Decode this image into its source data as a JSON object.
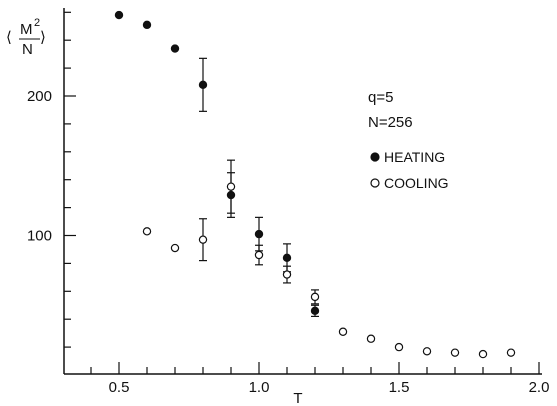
{
  "chart_data": {
    "type": "scatter",
    "title": "",
    "xlabel": "T",
    "ylabel_top": "M",
    "ylabel_sup": "2",
    "ylabel_bottom": "N",
    "xlim": [
      0.35,
      2.0
    ],
    "ylim": [
      0,
      260
    ],
    "x_ticks": [
      {
        "value": 0.5,
        "label": "0.5"
      },
      {
        "value": 1.0,
        "label": "1.0"
      },
      {
        "value": 1.5,
        "label": "1.5"
      },
      {
        "value": 2.0,
        "label": "2.0"
      }
    ],
    "y_ticks": [
      {
        "value": 100,
        "label": "100"
      },
      {
        "value": 200,
        "label": "200"
      }
    ],
    "annotations": [
      "q=5",
      "N=256"
    ],
    "series": [
      {
        "name": "HEATING",
        "marker": "filled-circle",
        "points": [
          {
            "x": 0.5,
            "y": 258
          },
          {
            "x": 0.6,
            "y": 251
          },
          {
            "x": 0.7,
            "y": 234
          },
          {
            "x": 0.8,
            "y": 208,
            "err": 19
          },
          {
            "x": 0.9,
            "y": 129,
            "err": 16
          },
          {
            "x": 1.0,
            "y": 101,
            "err": 12
          },
          {
            "x": 1.1,
            "y": 84,
            "err": 10
          },
          {
            "x": 1.2,
            "y": 46,
            "err": 4
          }
        ]
      },
      {
        "name": "COOLING",
        "marker": "open-circle",
        "points": [
          {
            "x": 0.6,
            "y": 103
          },
          {
            "x": 0.7,
            "y": 91
          },
          {
            "x": 0.8,
            "y": 97,
            "err": 15
          },
          {
            "x": 0.9,
            "y": 135,
            "err": 19
          },
          {
            "x": 1.0,
            "y": 86,
            "err": 7
          },
          {
            "x": 1.1,
            "y": 72,
            "err": 6
          },
          {
            "x": 1.2,
            "y": 56,
            "err": 5
          },
          {
            "x": 1.3,
            "y": 31
          },
          {
            "x": 1.4,
            "y": 26
          },
          {
            "x": 1.5,
            "y": 20
          },
          {
            "x": 1.6,
            "y": 17
          },
          {
            "x": 1.7,
            "y": 16
          },
          {
            "x": 1.8,
            "y": 15
          },
          {
            "x": 1.9,
            "y": 16
          }
        ]
      }
    ],
    "colors": {
      "ink": "#111111",
      "background": "#ffffff"
    },
    "grid": false,
    "legend_position": "right"
  }
}
